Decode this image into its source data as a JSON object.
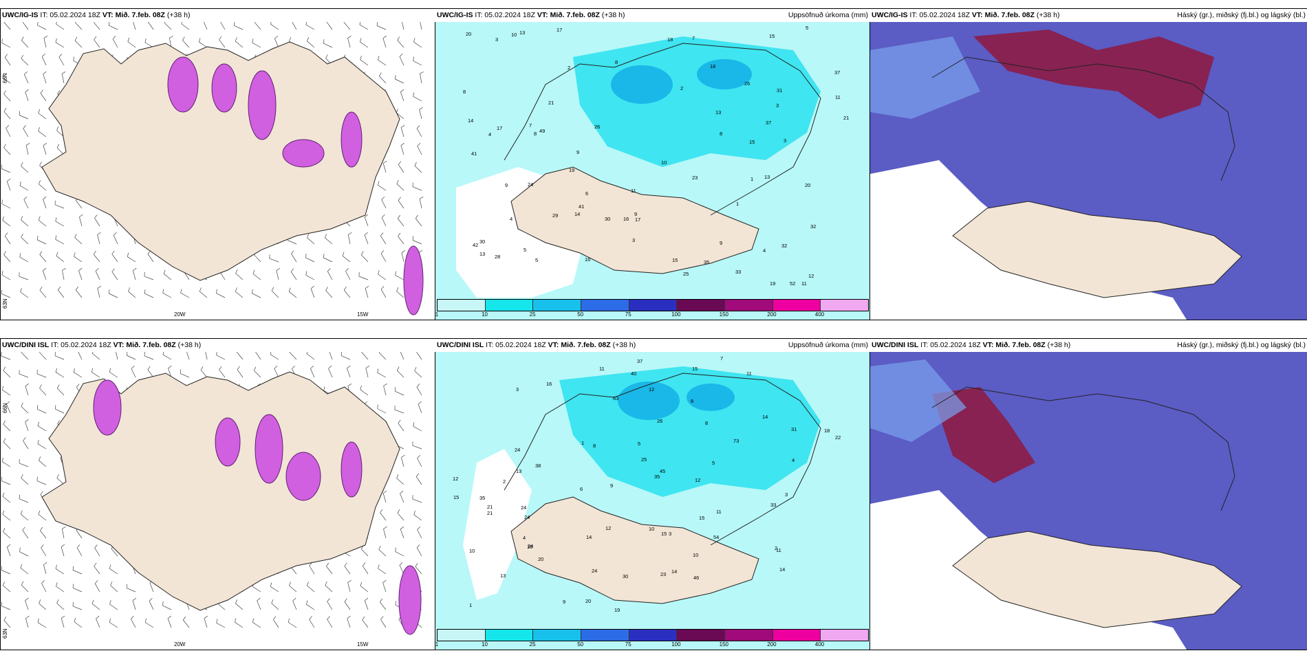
{
  "rows": [
    {
      "model": "UWC/IG-IS",
      "init": "IT: 05.02.2024 18Z",
      "valid_label": "VT:",
      "valid_value": "Mið. 7.feb. 08Z",
      "lead": "(+38 h)",
      "grid_labels": {
        "lat_66": "66N",
        "lat_63": "63N",
        "lon_20": "20W",
        "lon_15": "15W"
      },
      "precip_numbers": [
        "11",
        "8",
        "10",
        "13",
        "11",
        "2",
        "16",
        "19",
        "14",
        "15",
        "3",
        "18",
        "20",
        "19",
        "9",
        "9",
        "10",
        "21",
        "37",
        "26",
        "52",
        "49",
        "35",
        "29",
        "32",
        "8",
        "15",
        "30",
        "31",
        "42",
        "41",
        "30",
        "28",
        "32",
        "26",
        "14",
        "17",
        "13",
        "24",
        "16",
        "41",
        "12",
        "20",
        "33",
        "17",
        "13",
        "9",
        "21",
        "17",
        "18",
        "25",
        "37",
        "23",
        "15",
        "11",
        "13",
        "5",
        "3",
        "4",
        "5",
        "7",
        "8",
        "8",
        "1",
        "4",
        "4",
        "5",
        "2",
        "1",
        "6",
        "9",
        "7",
        "3",
        "3"
      ]
    },
    {
      "model": "UWC/DINI ISL",
      "init": "IT: 05.02.2024 18Z",
      "valid_label": "VT:",
      "valid_value": "Mið. 7.feb. 08Z",
      "lead": "(+38 h)",
      "grid_labels": {
        "lat_66": "66N",
        "lat_63": "63N",
        "lon_20": "20W",
        "lon_15": "15W"
      },
      "precip_numbers": [
        "13",
        "11",
        "16",
        "14",
        "15",
        "38",
        "24",
        "24",
        "31",
        "73",
        "35",
        "37",
        "54",
        "35",
        "19",
        "11",
        "14",
        "12",
        "10",
        "20",
        "46",
        "40",
        "63",
        "45",
        "25",
        "24",
        "21",
        "15",
        "26",
        "11",
        "24",
        "20",
        "14",
        "10",
        "11",
        "21",
        "18",
        "12",
        "8",
        "33",
        "22",
        "12",
        "30",
        "24",
        "15",
        "13",
        "15",
        "23",
        "14",
        "10",
        "8",
        "9",
        "5",
        "4",
        "6",
        "3",
        "1",
        "2",
        "3",
        "2",
        "1",
        "7",
        "8",
        "9",
        "12",
        "10",
        "4",
        "5",
        "3"
      ]
    }
  ],
  "precip_title": "Uppsöfnuð úrkoma (mm)",
  "cloud_title": "Háský (gr.), miðský (fj.bl.) og lágský (bl.)",
  "colorbar": {
    "ticks": [
      "1",
      "10",
      "25",
      "50",
      "75",
      "100",
      "150",
      "200",
      "400"
    ],
    "colors": [
      "#c8f6f6",
      "#15e6ec",
      "#18c0ec",
      "#2c6ce6",
      "#2b2fc0",
      "#6a0a55",
      "#a00a7a",
      "#ee00a0",
      "#f0a8f0"
    ]
  },
  "colors": {
    "land": "#f2e5d6",
    "precip_light": "#b8f8f8",
    "precip_mid": "#3fe5f0",
    "precip_dark": "#1ab8e8",
    "cloud_high": "#8c1c46",
    "cloud_mid": "#5b5cc4",
    "cloud_low": "#7aa3f0",
    "frost": "#d060e0"
  }
}
